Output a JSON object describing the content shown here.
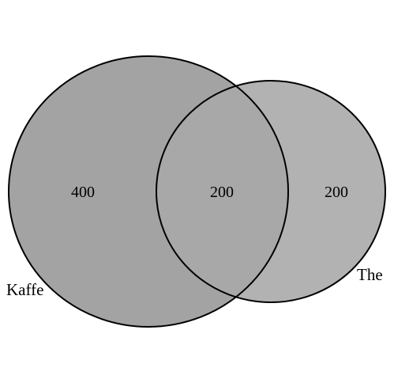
{
  "venn": {
    "sets": [
      {
        "name": "Kaffe",
        "only_count": "400",
        "fill": "#a3a3a3"
      },
      {
        "name": "The",
        "only_count": "200",
        "fill": "#b2b2b2"
      }
    ],
    "intersection": {
      "count": "200",
      "fill": "#a8a8a8"
    },
    "outline_color": "#000000",
    "background": "#ffffff"
  }
}
